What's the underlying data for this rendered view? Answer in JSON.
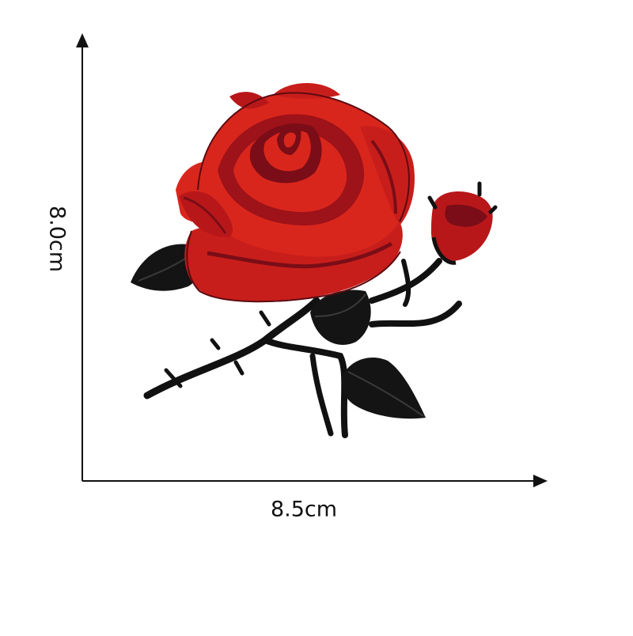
{
  "dimensions": {
    "height_label": "8.0cm",
    "width_label": "8.5cm"
  },
  "colors": {
    "background": "#ffffff",
    "axis": "#111111",
    "petal_bright": "#d9261c",
    "petal_mid": "#b8171a",
    "petal_dark": "#7a0d17",
    "leaf": "#141414",
    "stem": "#111111"
  },
  "image": {
    "subject": "embroidered-red-rose-patch"
  }
}
